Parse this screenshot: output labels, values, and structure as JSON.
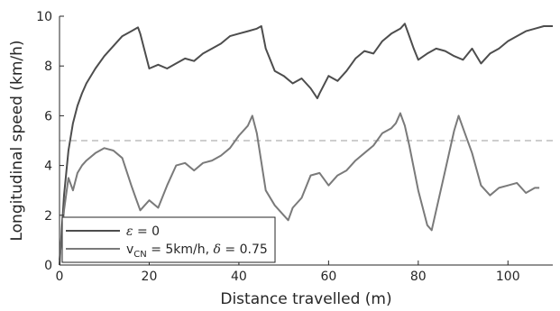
{
  "chart_data": {
    "type": "line",
    "title": "",
    "xlabel": "Distance travelled (m)",
    "ylabel": "Longitudinal speed (km/h)",
    "xlim": [
      0,
      110
    ],
    "ylim": [
      0,
      10
    ],
    "xticks": [
      "0",
      "20",
      "40",
      "60",
      "80",
      "100"
    ],
    "yticks": [
      "0",
      "2",
      "4",
      "6",
      "8",
      "10"
    ],
    "grid": false,
    "legend_position": "bottom-left",
    "reference_line": {
      "y": 5,
      "style": "dashed",
      "color": "#b0b0b0"
    },
    "series": [
      {
        "name": "ε = 0",
        "color": "#4d4d4d",
        "x": [
          0,
          1,
          2,
          3,
          4,
          5,
          6,
          8,
          10,
          12,
          14,
          16,
          17.5,
          18,
          19,
          20,
          22,
          24,
          26,
          28,
          30,
          32,
          34,
          36,
          38,
          40,
          42,
          44,
          45,
          46,
          48,
          50,
          52,
          54,
          56,
          57.5,
          58,
          60,
          62,
          64,
          66,
          68,
          70,
          72,
          74,
          76,
          77,
          78,
          79,
          80,
          82,
          84,
          86,
          88,
          90,
          92,
          94,
          96,
          98,
          100,
          102,
          104,
          106,
          108,
          110
        ],
        "y": [
          0,
          2.8,
          4.6,
          5.7,
          6.4,
          6.9,
          7.3,
          7.9,
          8.4,
          8.8,
          9.2,
          9.4,
          9.55,
          9.3,
          8.6,
          7.9,
          8.05,
          7.9,
          8.1,
          8.3,
          8.2,
          8.5,
          8.7,
          8.9,
          9.2,
          9.3,
          9.4,
          9.5,
          9.6,
          8.7,
          7.8,
          7.6,
          7.3,
          7.5,
          7.1,
          6.7,
          6.9,
          7.6,
          7.4,
          7.8,
          8.3,
          8.6,
          8.5,
          9.0,
          9.3,
          9.5,
          9.7,
          9.2,
          8.7,
          8.25,
          8.5,
          8.7,
          8.6,
          8.4,
          8.25,
          8.7,
          8.1,
          8.5,
          8.7,
          9.0,
          9.2,
          9.4,
          9.5,
          9.6,
          9.6
        ]
      },
      {
        "name": "v_CN = 5km/h, δ = 0.75",
        "color": "#7a7a7a",
        "x": [
          0,
          1,
          2,
          3,
          4,
          5,
          6,
          8,
          10,
          12,
          14,
          16,
          17,
          18,
          20,
          22,
          24,
          26,
          28,
          30,
          32,
          34,
          36,
          38,
          40,
          42,
          43,
          44,
          46,
          48,
          50,
          51,
          52,
          54,
          56,
          58,
          60,
          62,
          64,
          66,
          68,
          70,
          72,
          74,
          75,
          76,
          77,
          78,
          80,
          82,
          83,
          84,
          86,
          88,
          89,
          90,
          92,
          94,
          96,
          98,
          100,
          102,
          104,
          106,
          107
        ],
        "y": [
          0.2,
          2.2,
          3.5,
          3.0,
          3.7,
          4.0,
          4.2,
          4.5,
          4.7,
          4.6,
          4.3,
          3.2,
          2.7,
          2.2,
          2.6,
          2.3,
          3.2,
          4.0,
          4.1,
          3.8,
          4.1,
          4.2,
          4.4,
          4.7,
          5.2,
          5.6,
          6.0,
          5.3,
          3.0,
          2.4,
          2.0,
          1.8,
          2.3,
          2.7,
          3.6,
          3.7,
          3.2,
          3.6,
          3.8,
          4.2,
          4.5,
          4.8,
          5.3,
          5.5,
          5.7,
          6.1,
          5.6,
          4.8,
          3.0,
          1.6,
          1.4,
          2.2,
          3.8,
          5.4,
          6.0,
          5.5,
          4.5,
          3.2,
          2.8,
          3.1,
          3.2,
          3.3,
          2.9,
          3.1,
          3.1
        ]
      }
    ]
  },
  "legend": {
    "item1": {
      "symbol": "ε",
      "text": " = 0"
    },
    "item2": {
      "v": "v",
      "sub": "CN",
      "text": " = 5km/h, ",
      "delta": "δ",
      "text2": " = 0.75"
    }
  }
}
